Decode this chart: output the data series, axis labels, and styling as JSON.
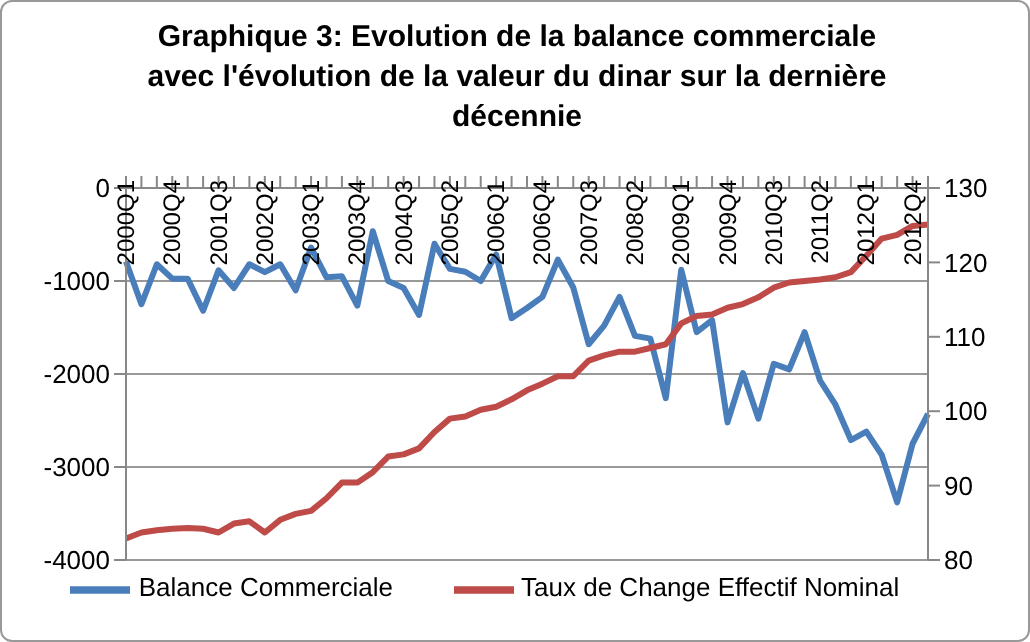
{
  "chart_data": {
    "type": "line",
    "title": "Graphique 3: Evolution de la balance commerciale  avec l'évolution de la valeur du dinar sur la dernière décennie",
    "categories": [
      "2000Q1",
      null,
      null,
      "2000Q4",
      null,
      null,
      "2001Q3",
      null,
      null,
      "2002Q2",
      null,
      null,
      "2003Q1",
      null,
      null,
      "2003Q4",
      null,
      null,
      "2004Q3",
      null,
      null,
      "2005Q2",
      null,
      null,
      "2006Q1",
      null,
      null,
      "2006Q4",
      null,
      null,
      "2007Q3",
      null,
      null,
      "2008Q2",
      null,
      null,
      "2009Q1",
      null,
      null,
      "2009Q4",
      null,
      null,
      "2010Q3",
      null,
      null,
      "2011Q2",
      null,
      null,
      "2012Q1",
      null,
      null,
      "2012Q4",
      null
    ],
    "series": [
      {
        "name": "Balance Commerciale",
        "color": "#4a7ebb",
        "values": [
          -790,
          -1250,
          -820,
          -975,
          -975,
          -1320,
          -885,
          -1075,
          -820,
          -905,
          -820,
          -1100,
          -640,
          -960,
          -950,
          -1265,
          -465,
          -1000,
          -1075,
          -1365,
          -600,
          -870,
          -900,
          -1000,
          -715,
          -1400,
          -1290,
          -1170,
          -770,
          -1070,
          -1680,
          -1480,
          -1170,
          -1590,
          -1620,
          -2260,
          -880,
          -1550,
          -1420,
          -2520,
          -1990,
          -2480,
          -1890,
          -1950,
          -1550,
          -2070,
          -2330,
          -2710,
          -2620,
          -2870,
          -3380,
          -2750,
          -2430
        ]
      },
      {
        "name": "Taux de Change Effectif Nominal",
        "color": "#be4b48",
        "axis": "y2",
        "values": [
          82.9,
          83.7,
          84,
          84.2,
          84.3,
          84.2,
          83.7,
          84.9,
          85.2,
          83.7,
          85.4,
          86.2,
          86.6,
          88.3,
          90.4,
          90.4,
          91.8,
          93.9,
          94.2,
          95,
          97.2,
          99,
          99.3,
          100.2,
          100.6,
          101.6,
          102.8,
          103.7,
          104.7,
          104.7,
          106.8,
          107.5,
          108,
          108,
          108.5,
          109,
          111.8,
          112.8,
          113,
          113.9,
          114.4,
          115.3,
          116.6,
          117.3,
          117.5,
          117.7,
          118,
          118.7,
          120.9,
          123.2,
          123.7,
          124.9,
          125.1
        ]
      }
    ],
    "ylim": [
      -4000,
      0
    ],
    "yticks": [
      -4000,
      -3000,
      -2000,
      -1000,
      0
    ],
    "y2lim": [
      80,
      130
    ],
    "y2ticks": [
      80,
      90,
      100,
      110,
      120,
      130
    ],
    "grid": "y",
    "legend": "bottom",
    "marker": "none",
    "line_style": "solid"
  }
}
